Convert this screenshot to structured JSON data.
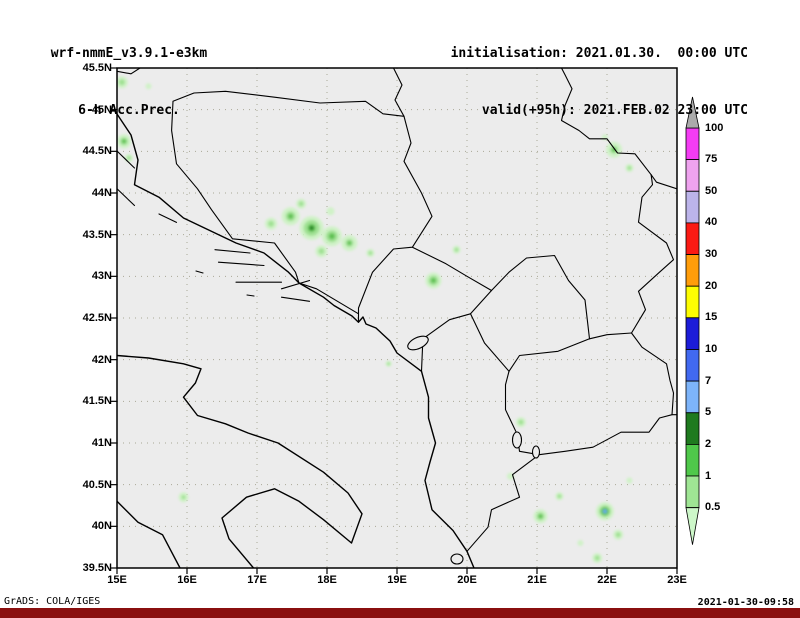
{
  "header": {
    "model_line": "wrf-nmmE_v3.9.1-e3km",
    "product_line": "6-h Acc.Prec.",
    "init_line": "initialisation: 2021.01.30.  00:00 UTC",
    "valid_line": "valid(+95h): 2021.FEB.02 23:00 UTC"
  },
  "map": {
    "background": "#ececec",
    "axis": {
      "lat_ticks": [
        {
          "label": "45.5N",
          "value": 45.5
        },
        {
          "label": "45N",
          "value": 45
        },
        {
          "label": "44.5N",
          "value": 44.5
        },
        {
          "label": "44N",
          "value": 44
        },
        {
          "label": "43.5N",
          "value": 43.5
        },
        {
          "label": "43N",
          "value": 43
        },
        {
          "label": "42.5N",
          "value": 42.5
        },
        {
          "label": "42N",
          "value": 42
        },
        {
          "label": "41.5N",
          "value": 41.5
        },
        {
          "label": "41N",
          "value": 41
        },
        {
          "label": "40.5N",
          "value": 40.5
        },
        {
          "label": "40N",
          "value": 40
        },
        {
          "label": "39.5N",
          "value": 39.5
        }
      ],
      "lon_ticks": [
        {
          "label": "15E",
          "value": 15
        },
        {
          "label": "16E",
          "value": 16
        },
        {
          "label": "17E",
          "value": 17
        },
        {
          "label": "18E",
          "value": 18
        },
        {
          "label": "19E",
          "value": 19
        },
        {
          "label": "20E",
          "value": 20
        },
        {
          "label": "21E",
          "value": 21
        },
        {
          "label": "22E",
          "value": 22
        },
        {
          "label": "23E",
          "value": 23
        }
      ]
    }
  },
  "colorbar": {
    "labels": [
      "100",
      "75",
      "50",
      "40",
      "30",
      "20",
      "15",
      "10",
      "7",
      "5",
      "2",
      "1",
      "0.5"
    ],
    "segment_colors": [
      "#ababab",
      "#f43cf4",
      "#efa3ef",
      "#bcb4ea",
      "#fb1a14",
      "#ff9d0a",
      "#fdfd02",
      "#1c1cd8",
      "#4169f0",
      "#7db4fa",
      "#1f7a1f",
      "#4fc84a",
      "#9fe594",
      "#cdf7c9"
    ]
  },
  "precip_blobs": [
    {
      "lon": 15.07,
      "lat": 45.33,
      "spots": [
        {
          "r": 6,
          "color": "#cdf2c4"
        },
        {
          "r": 3,
          "color": "#9ce08f"
        }
      ]
    },
    {
      "lon": 15.45,
      "lat": 45.28,
      "spots": [
        {
          "r": 3,
          "color": "#cdf2c4"
        }
      ]
    },
    {
      "lon": 15.1,
      "lat": 44.62,
      "spots": [
        {
          "r": 7,
          "color": "#cdf2c4"
        },
        {
          "r": 4,
          "color": "#9ce08f"
        },
        {
          "r": 2,
          "color": "#57bd4c"
        }
      ]
    },
    {
      "lon": 15.17,
      "lat": 44.42,
      "spots": [
        {
          "r": 4,
          "color": "#cdf2c4"
        },
        {
          "r": 2,
          "color": "#9ce08f"
        }
      ]
    },
    {
      "lon": 17.2,
      "lat": 43.63,
      "spots": [
        {
          "r": 6,
          "color": "#cdf2c4"
        },
        {
          "r": 3,
          "color": "#9ce08f"
        }
      ]
    },
    {
      "lon": 17.48,
      "lat": 43.72,
      "spots": [
        {
          "r": 9,
          "color": "#cdf2c4"
        },
        {
          "r": 5,
          "color": "#9ce08f"
        },
        {
          "r": 2.5,
          "color": "#57bd4c"
        }
      ]
    },
    {
      "lon": 17.78,
      "lat": 43.58,
      "spots": [
        {
          "r": 12,
          "color": "#cdf2c4"
        },
        {
          "r": 8,
          "color": "#9ce08f"
        },
        {
          "r": 4,
          "color": "#57bd4c"
        },
        {
          "r": 2,
          "color": "#1e7a1e"
        }
      ]
    },
    {
      "lon": 18.07,
      "lat": 43.48,
      "spots": [
        {
          "r": 10,
          "color": "#cdf2c4"
        },
        {
          "r": 6,
          "color": "#9ce08f"
        },
        {
          "r": 3,
          "color": "#57bd4c"
        }
      ]
    },
    {
      "lon": 18.32,
      "lat": 43.4,
      "spots": [
        {
          "r": 8,
          "color": "#cdf2c4"
        },
        {
          "r": 4,
          "color": "#9ce08f"
        },
        {
          "r": 2,
          "color": "#57bd4c"
        }
      ]
    },
    {
      "lon": 17.92,
      "lat": 43.3,
      "spots": [
        {
          "r": 6,
          "color": "#cdf2c4"
        },
        {
          "r": 3,
          "color": "#9ce08f"
        }
      ]
    },
    {
      "lon": 17.63,
      "lat": 43.87,
      "spots": [
        {
          "r": 5,
          "color": "#cdf2c4"
        },
        {
          "r": 2.5,
          "color": "#9ce08f"
        }
      ]
    },
    {
      "lon": 18.62,
      "lat": 43.28,
      "spots": [
        {
          "r": 4,
          "color": "#cdf2c4"
        },
        {
          "r": 2,
          "color": "#9ce08f"
        }
      ]
    },
    {
      "lon": 18.05,
      "lat": 43.78,
      "spots": [
        {
          "r": 4,
          "color": "#cdf2c4"
        }
      ]
    },
    {
      "lon": 19.52,
      "lat": 42.95,
      "spots": [
        {
          "r": 8,
          "color": "#cdf2c4"
        },
        {
          "r": 5,
          "color": "#9ce08f"
        },
        {
          "r": 2.5,
          "color": "#57bd4c"
        }
      ]
    },
    {
      "lon": 19.85,
      "lat": 43.32,
      "spots": [
        {
          "r": 4,
          "color": "#cdf2c4"
        },
        {
          "r": 2,
          "color": "#9ce08f"
        }
      ]
    },
    {
      "lon": 18.88,
      "lat": 41.95,
      "spots": [
        {
          "r": 3,
          "color": "#cdf2c4"
        },
        {
          "r": 1.5,
          "color": "#9ce08f"
        }
      ]
    },
    {
      "lon": 20.77,
      "lat": 41.25,
      "spots": [
        {
          "r": 5,
          "color": "#cdf2c4"
        },
        {
          "r": 2.5,
          "color": "#9ce08f"
        }
      ]
    },
    {
      "lon": 20.62,
      "lat": 40.6,
      "spots": [
        {
          "r": 3.5,
          "color": "#cdf2c4"
        }
      ]
    },
    {
      "lon": 21.05,
      "lat": 40.12,
      "spots": [
        {
          "r": 7,
          "color": "#cdf2c4"
        },
        {
          "r": 4,
          "color": "#9ce08f"
        },
        {
          "r": 2,
          "color": "#57bd4c"
        }
      ]
    },
    {
      "lon": 21.32,
      "lat": 40.36,
      "spots": [
        {
          "r": 4,
          "color": "#cdf2c4"
        },
        {
          "r": 2,
          "color": "#9ce08f"
        }
      ]
    },
    {
      "lon": 21.97,
      "lat": 40.18,
      "spots": [
        {
          "r": 9,
          "color": "#cdf2c4"
        },
        {
          "r": 6,
          "color": "#9ce08f"
        },
        {
          "r": 4,
          "color": "#57bd4c"
        },
        {
          "r": 2.2,
          "color": "#6aa8f5"
        }
      ]
    },
    {
      "lon": 22.16,
      "lat": 39.9,
      "spots": [
        {
          "r": 5,
          "color": "#cdf2c4"
        },
        {
          "r": 2.5,
          "color": "#9ce08f"
        }
      ]
    },
    {
      "lon": 21.86,
      "lat": 39.62,
      "spots": [
        {
          "r": 5,
          "color": "#cdf2c4"
        },
        {
          "r": 2.5,
          "color": "#9ce08f"
        }
      ]
    },
    {
      "lon": 22.32,
      "lat": 40.55,
      "spots": [
        {
          "r": 3,
          "color": "#cdf2c4"
        }
      ]
    },
    {
      "lon": 21.62,
      "lat": 39.8,
      "spots": [
        {
          "r": 3,
          "color": "#cdf2c4"
        }
      ]
    },
    {
      "lon": 22.1,
      "lat": 44.52,
      "spots": [
        {
          "r": 8,
          "color": "#cdf2c4"
        },
        {
          "r": 4,
          "color": "#9ce08f"
        },
        {
          "r": 2,
          "color": "#57bd4c"
        }
      ]
    },
    {
      "lon": 22.32,
      "lat": 44.3,
      "spots": [
        {
          "r": 4,
          "color": "#cdf2c4"
        },
        {
          "r": 2,
          "color": "#9ce08f"
        }
      ]
    },
    {
      "lon": 21.97,
      "lat": 44.67,
      "spots": [
        {
          "r": 3,
          "color": "#cdf2c4"
        }
      ]
    },
    {
      "lon": 15.95,
      "lat": 40.35,
      "spots": [
        {
          "r": 5,
          "color": "#cdf2c4"
        },
        {
          "r": 2,
          "color": "#9ce08f"
        }
      ]
    }
  ],
  "footer": {
    "left": "GrADS: COLA/IGES",
    "right": "2021-01-30-09:58",
    "bar_color": "#8a0f0f"
  }
}
